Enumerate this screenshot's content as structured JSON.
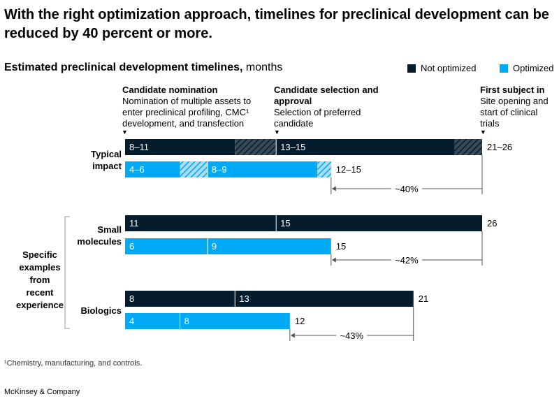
{
  "headline": "With the right optimization approach, timelines for preclinical development can be reduced by 40 percent or more.",
  "subtitle": {
    "bold": "Estimated preclinical development timelines,",
    "unit": " months"
  },
  "footnote": "¹Chemistry, manufacturing, and controls.",
  "brand": "McKinsey & Company",
  "colors": {
    "not_optimized": "#051c2c",
    "optimized": "#00a9f4"
  },
  "legend": [
    {
      "label": "Not optimized",
      "color": "#051c2c"
    },
    {
      "label": "Optimized",
      "color": "#00a9f4"
    }
  ],
  "stages": [
    {
      "title": "Candidate nomination",
      "desc": "Nomination of multiple assets to enter preclinical profiling, CMC¹ development, and transfection"
    },
    {
      "title": "Candidate selection and approval",
      "desc": "Selection of preferred candidate"
    },
    {
      "title": "First subject in",
      "desc": "Site opening and start of clinical trials"
    }
  ],
  "group_side_label": "Specific examples from recent experience",
  "chart_data": {
    "type": "bar",
    "orientation": "horizontal",
    "stacked": true,
    "unit": "months",
    "series_names": [
      "Not optimized",
      "Optimized"
    ],
    "groups": [
      {
        "label": "Typical impact",
        "bars": [
          {
            "series": "Not optimized",
            "segments": [
              {
                "label": "8–11",
                "min": 8,
                "max": 11
              },
              {
                "label": "13–15",
                "min": 13,
                "max": 15
              }
            ],
            "total": "21–26",
            "total_min": 21,
            "total_max": 26
          },
          {
            "series": "Optimized",
            "segments": [
              {
                "label": "4–6",
                "min": 4,
                "max": 6
              },
              {
                "label": "8–9",
                "min": 8,
                "max": 9
              }
            ],
            "total": "12–15",
            "total_min": 12,
            "total_max": 15
          }
        ],
        "reduction": "~40%"
      },
      {
        "label": "Small molecules",
        "bars": [
          {
            "series": "Not optimized",
            "segments": [
              {
                "label": "11",
                "min": 11,
                "max": 11
              },
              {
                "label": "15",
                "min": 15,
                "max": 15
              }
            ],
            "total": "26",
            "total_min": 26,
            "total_max": 26
          },
          {
            "series": "Optimized",
            "segments": [
              {
                "label": "6",
                "min": 6,
                "max": 6
              },
              {
                "label": "9",
                "min": 9,
                "max": 9
              }
            ],
            "total": "15",
            "total_min": 15,
            "total_max": 15
          }
        ],
        "reduction": "~42%"
      },
      {
        "label": "Biologics",
        "bars": [
          {
            "series": "Not optimized",
            "segments": [
              {
                "label": "8",
                "min": 8,
                "max": 8
              },
              {
                "label": "13",
                "min": 13,
                "max": 13
              }
            ],
            "total": "21",
            "total_min": 21,
            "total_max": 21
          },
          {
            "series": "Optimized",
            "segments": [
              {
                "label": "4",
                "min": 4,
                "max": 4
              },
              {
                "label": "8",
                "min": 8,
                "max": 8
              }
            ],
            "total": "12",
            "total_min": 12,
            "total_max": 12
          }
        ],
        "reduction": "~43%"
      }
    ]
  }
}
